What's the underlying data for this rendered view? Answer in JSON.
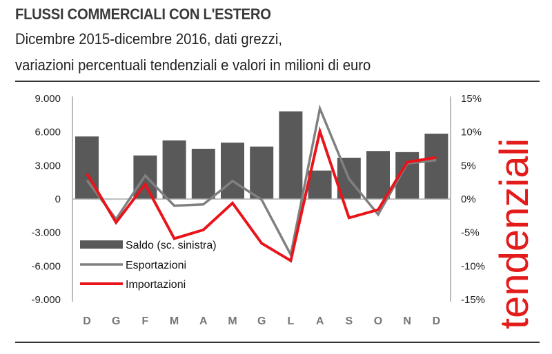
{
  "title": "FLUSSI COMMERCIALI CON L'ESTERO",
  "subtitle_line1": "Dicembre 2015-dicembre 2016, dati grezzi,",
  "subtitle_line2": "variazioni percentuali tendenziali e valori in milioni di euro",
  "side_label": "tendenziali",
  "chart_data": {
    "type": "bar+line",
    "categories": [
      "D",
      "G",
      "F",
      "M",
      "A",
      "M",
      "G",
      "L",
      "A",
      "S",
      "O",
      "N",
      "D"
    ],
    "left_axis": {
      "ylim": [
        -9000,
        9000
      ],
      "ticks": [
        "-9.000",
        "-6.000",
        "-3.000",
        "0",
        "3.000",
        "6.000",
        "9.000"
      ]
    },
    "right_axis": {
      "ylim": [
        -15,
        15
      ],
      "ticks": [
        "-15%",
        "-10%",
        "-5%",
        "0%",
        "5%",
        "10%",
        "15%"
      ]
    },
    "series": [
      {
        "name": "Saldo (sc. sinistra)",
        "type": "bar",
        "axis": "left",
        "color": "#595959",
        "values": [
          5600,
          0,
          3900,
          5250,
          4500,
          5050,
          4700,
          7850,
          2550,
          3700,
          4300,
          4200,
          5850
        ]
      },
      {
        "name": "Esportazioni",
        "type": "line",
        "axis": "right",
        "color": "#808080",
        "values": [
          2.8,
          -3.0,
          3.5,
          -1.0,
          -0.8,
          2.7,
          -0.1,
          -8.3,
          13.5,
          3.0,
          -2.3,
          5.3,
          5.8
        ]
      },
      {
        "name": "Importazioni",
        "type": "line",
        "axis": "right",
        "color": "#e8141a",
        "values": [
          3.8,
          -3.5,
          2.2,
          -5.9,
          -4.6,
          -0.6,
          -6.6,
          -9.2,
          10.1,
          -2.8,
          -1.6,
          5.5,
          6.2
        ]
      }
    ],
    "legend": "inside-bottom-left",
    "grid": false
  }
}
